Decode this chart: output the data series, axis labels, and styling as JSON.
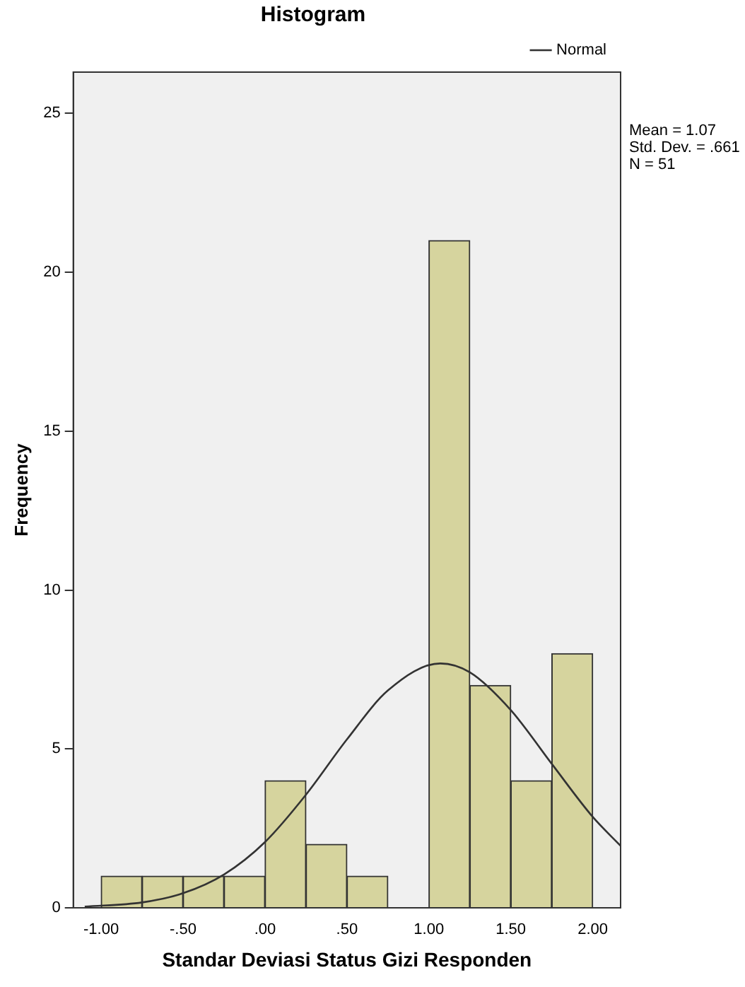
{
  "chart_data": {
    "type": "histogram",
    "title": "Histogram",
    "xlabel": "Standar Deviasi Status Gizi Responden",
    "ylabel": "Frequency",
    "bins": [
      -1.0,
      -0.75,
      -0.5,
      -0.25,
      0.0,
      0.25,
      0.5,
      0.75,
      1.0,
      1.25,
      1.5,
      1.75,
      2.0
    ],
    "values": [
      1,
      1,
      1,
      1,
      4,
      2,
      1,
      0,
      21,
      7,
      4,
      8
    ],
    "color": "#d6d49e",
    "series": [
      {
        "name": "Normal",
        "type": "line",
        "color": "#333333",
        "x": [
          -1.1,
          -0.75,
          -0.5,
          -0.25,
          0.0,
          0.25,
          0.5,
          0.75,
          1.07,
          1.25,
          1.5,
          1.75,
          2.0,
          2.17
        ],
        "values": [
          0.04,
          0.17,
          0.46,
          1.05,
          2.07,
          3.56,
          5.3,
          6.84,
          7.69,
          7.41,
          6.22,
          4.53,
          2.86,
          1.95
        ]
      }
    ],
    "xlim": [
      -1.17,
      2.17
    ],
    "ylim": [
      0,
      26.3
    ],
    "xticks": [
      {
        "value": -1,
        "label": "-1.00"
      },
      {
        "value": -0.5,
        "label": "-.50"
      },
      {
        "value": 0,
        "label": ".00"
      },
      {
        "value": 0.5,
        "label": ".50"
      },
      {
        "value": 1,
        "label": "1.00"
      },
      {
        "value": 1.5,
        "label": "1.50"
      },
      {
        "value": 2,
        "label": "2.00"
      }
    ],
    "yticks": [
      0,
      5,
      10,
      15,
      20,
      25
    ],
    "legend": "top right",
    "grid": false,
    "annotations": [
      "Mean = 1.07",
      "Std. Dev. = .661",
      "N = 51"
    ]
  }
}
